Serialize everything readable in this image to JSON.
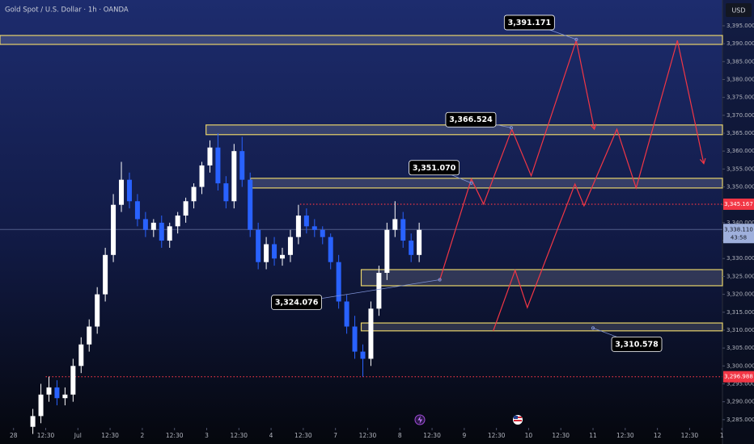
{
  "chart_data": {
    "type": "candlestick",
    "title": "Gold Spot / U.S. Dollar · 1h · OANDA",
    "currency": "USD",
    "up_color": "#ffffff",
    "down_color": "#2962ff",
    "xlim": [
      -0.21,
      11.01
    ],
    "ylim": [
      3278.2,
      3402.2
    ],
    "xticks": [
      {
        "value": 0,
        "label": "28"
      },
      {
        "value": 0.5,
        "label": "12:30"
      },
      {
        "value": 1,
        "label": "Jul"
      },
      {
        "value": 1.5,
        "label": "12:30"
      },
      {
        "value": 2,
        "label": "2"
      },
      {
        "value": 2.5,
        "label": "12:30"
      },
      {
        "value": 3,
        "label": "3"
      },
      {
        "value": 3.5,
        "label": "12:30"
      },
      {
        "value": 4,
        "label": "4"
      },
      {
        "value": 4.5,
        "label": "12:30"
      },
      {
        "value": 5,
        "label": "7"
      },
      {
        "value": 5.5,
        "label": "12:30"
      },
      {
        "value": 6,
        "label": "8"
      },
      {
        "value": 6.5,
        "label": "12:30"
      },
      {
        "value": 7,
        "label": "9"
      },
      {
        "value": 7.5,
        "label": "12:30"
      },
      {
        "value": 8,
        "label": "10"
      },
      {
        "value": 8.5,
        "label": "12:30"
      },
      {
        "value": 9,
        "label": "11"
      },
      {
        "value": 9.5,
        "label": "12:30"
      },
      {
        "value": 10,
        "label": "12"
      },
      {
        "value": 10.5,
        "label": "12:30"
      },
      {
        "value": 11,
        "label": "1"
      }
    ],
    "yticks": [
      {
        "value": 3285,
        "label": "3,285.000"
      },
      {
        "value": 3290,
        "label": "3,290.000"
      },
      {
        "value": 3295,
        "label": "3,295.000"
      },
      {
        "value": 3300,
        "label": "3,300.000"
      },
      {
        "value": 3305,
        "label": "3,305.000"
      },
      {
        "value": 3310,
        "label": "3,310.000"
      },
      {
        "value": 3315,
        "label": "3,315.000"
      },
      {
        "value": 3320,
        "label": "3,320.000"
      },
      {
        "value": 3325,
        "label": "3,325.000"
      },
      {
        "value": 3330,
        "label": "3,330.000"
      },
      {
        "value": 3335,
        "label": "3,335.000"
      },
      {
        "value": 3340,
        "label": "3,340.000"
      },
      {
        "value": 3345,
        "label": "3,345.000"
      },
      {
        "value": 3350,
        "label": "3,350.000"
      },
      {
        "value": 3355,
        "label": "3,355.000"
      },
      {
        "value": 3360,
        "label": "3,360.000"
      },
      {
        "value": 3365,
        "label": "3,365.000"
      },
      {
        "value": 3370,
        "label": "3,370.000"
      },
      {
        "value": 3375,
        "label": "3,375.000"
      },
      {
        "value": 3380,
        "label": "3,380.000"
      },
      {
        "value": 3385,
        "label": "3,385.000"
      },
      {
        "value": 3390,
        "label": "3,390.000"
      },
      {
        "value": 3395,
        "label": "3,395.000"
      }
    ],
    "x": [
      0.3,
      0.425,
      0.55,
      0.675,
      0.8,
      0.925,
      1.05,
      1.175,
      1.3,
      1.425,
      1.55,
      1.675,
      1.8,
      1.925,
      2.05,
      2.175,
      2.3,
      2.425,
      2.55,
      2.675,
      2.8,
      2.925,
      3.05,
      3.175,
      3.3,
      3.425,
      3.55,
      3.675,
      3.8,
      3.925,
      4.05,
      4.175,
      4.3,
      4.425,
      4.55,
      4.675,
      4.8,
      4.925,
      5.05,
      5.175,
      5.3,
      5.425,
      5.55,
      5.675,
      5.8,
      5.925,
      6.05,
      6.175,
      6.3
    ],
    "open": [
      3283,
      3286,
      3292,
      3294,
      3291,
      3292,
      3300,
      3306,
      3311,
      3320,
      3331,
      3345,
      3352,
      3346,
      3341,
      3338,
      3340,
      3335,
      3339,
      3342,
      3346,
      3350,
      3356,
      3361,
      3351,
      3346,
      3360,
      3352,
      3338,
      3329,
      3334,
      3330,
      3331,
      3336,
      3342,
      3339,
      3338,
      3336,
      3329,
      3318,
      3311,
      3304,
      3302,
      3316,
      3326,
      3338,
      3341,
      3335,
      3331
    ],
    "high": [
      3288,
      3295,
      3297,
      3296,
      3294,
      3302,
      3308,
      3313,
      3322,
      3333,
      3348,
      3357,
      3354,
      3348,
      3343,
      3341,
      3342,
      3340,
      3343,
      3347,
      3351,
      3357,
      3363,
      3365,
      3353,
      3362,
      3364,
      3354,
      3340,
      3336,
      3336,
      3333,
      3338,
      3345,
      3344,
      3341,
      3339,
      3337,
      3331,
      3320,
      3314,
      3306,
      3318,
      3328,
      3340,
      3346,
      3343,
      3337,
      3340
    ],
    "low": [
      3281,
      3284,
      3290,
      3289,
      3289,
      3290,
      3298,
      3304,
      3309,
      3318,
      3329,
      3343,
      3344,
      3339,
      3336,
      3336,
      3333,
      3333,
      3337,
      3340,
      3344,
      3348,
      3354,
      3349,
      3344,
      3344,
      3350,
      3336,
      3327,
      3327,
      3328,
      3328,
      3329,
      3334,
      3337,
      3336,
      3334,
      3327,
      3316,
      3309,
      3302,
      3297,
      3300,
      3314,
      3324,
      3336,
      3333,
      3329,
      3329
    ],
    "close": [
      3286,
      3292,
      3294,
      3291,
      3292,
      3300,
      3306,
      3311,
      3320,
      3331,
      3345,
      3352,
      3346,
      3341,
      3338,
      3340,
      3335,
      3339,
      3342,
      3346,
      3350,
      3356,
      3361,
      3351,
      3346,
      3360,
      3352,
      3338,
      3329,
      3334,
      3330,
      3331,
      3336,
      3342,
      3339,
      3338,
      3336,
      3329,
      3318,
      3311,
      3304,
      3302,
      3316,
      3326,
      3338,
      3341,
      3335,
      3331,
      3338
    ],
    "last_price": {
      "value": 3338.11,
      "label": "3,338.110",
      "countdown": "43:58",
      "color": "#9fb0dc"
    },
    "levels": [
      {
        "value": 3345.167,
        "label": "3,345.167",
        "color": "#f23645",
        "x0": 4.45
      },
      {
        "value": 3296.988,
        "label": "3,296.988",
        "color": "#f23645",
        "x0": 0.5
      }
    ],
    "zone_color": "#e8d36a",
    "zones": [
      {
        "y0": 3389.8,
        "y1": 3392.3
      },
      {
        "x0": 2.99,
        "y0": 3364.6,
        "y1": 3367.3
      },
      {
        "x0": 3.68,
        "y0": 3349.7,
        "y1": 3352.4
      },
      {
        "x0": 5.4,
        "y0": 3322.4,
        "y1": 3326.9
      },
      {
        "x0": 5.4,
        "y0": 3309.8,
        "y1": 3312.0
      }
    ],
    "annotations": [
      {
        "x": 8.74,
        "value": 3391.171,
        "label": "3,391.171"
      },
      {
        "x": 7.73,
        "value": 3366.524,
        "label": "3,366.524"
      },
      {
        "x": 7.11,
        "value": 3351.07,
        "label": "3,351.070"
      },
      {
        "x": 6.62,
        "value": 3324.076,
        "label": "3,324.076"
      },
      {
        "x": 9.0,
        "value": 3310.578,
        "label": "3,310.578"
      }
    ],
    "projections": [
      {
        "color": "#f23645",
        "x": [
          6.62,
          7.11,
          7.3,
          7.74,
          8.04,
          8.74,
          9.02
        ],
        "values": [
          3324.0,
          3352.2,
          3345.2,
          3366.1,
          3353.1,
          3390.9,
          3366.1
        ]
      },
      {
        "color": "#f23645",
        "x": [
          7.45,
          7.79,
          7.98,
          8.72,
          8.86,
          9.37,
          9.67,
          10.31,
          10.72
        ],
        "values": [
          3309.8,
          3326.7,
          3316.3,
          3350.8,
          3344.7,
          3366.1,
          3349.7,
          3390.9,
          3356.5
        ]
      }
    ]
  }
}
